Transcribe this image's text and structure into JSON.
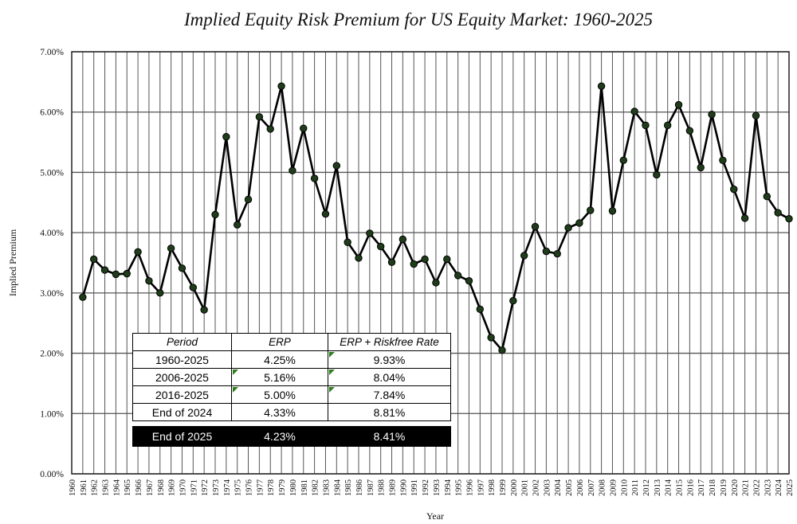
{
  "chart_data": {
    "type": "line",
    "title": "Implied Equity Risk Premium for US Equity Market: 1960-2025",
    "xlabel": "Year",
    "ylabel": "Implied Premium",
    "ylim": [
      0,
      0.07
    ],
    "yticks": [
      "0.00%",
      "1.00%",
      "2.00%",
      "3.00%",
      "4.00%",
      "5.00%",
      "6.00%",
      "7.00%"
    ],
    "grid": true,
    "series": [
      {
        "name": "Implied Premium",
        "x": [
          1961,
          1962,
          1963,
          1964,
          1965,
          1966,
          1967,
          1968,
          1969,
          1970,
          1971,
          1972,
          1973,
          1974,
          1975,
          1976,
          1977,
          1978,
          1979,
          1980,
          1981,
          1982,
          1983,
          1984,
          1985,
          1986,
          1987,
          1988,
          1989,
          1990,
          1991,
          1992,
          1993,
          1994,
          1995,
          1996,
          1997,
          1998,
          1999,
          2000,
          2001,
          2002,
          2003,
          2004,
          2005,
          2006,
          2007,
          2008,
          2009,
          2010,
          2011,
          2012,
          2013,
          2014,
          2015,
          2016,
          2017,
          2018,
          2019,
          2020,
          2021,
          2022,
          2023,
          2024,
          2025
        ],
        "values": [
          0.0293,
          0.0356,
          0.0338,
          0.0331,
          0.0332,
          0.0368,
          0.032,
          0.03,
          0.0374,
          0.0341,
          0.0309,
          0.0272,
          0.043,
          0.0559,
          0.0413,
          0.0455,
          0.0592,
          0.0572,
          0.0643,
          0.0503,
          0.0573,
          0.049,
          0.0431,
          0.0511,
          0.0384,
          0.0358,
          0.0399,
          0.0377,
          0.0351,
          0.0389,
          0.0348,
          0.0356,
          0.0317,
          0.0356,
          0.0329,
          0.032,
          0.0273,
          0.0226,
          0.0205,
          0.0287,
          0.0362,
          0.041,
          0.0369,
          0.0365,
          0.0408,
          0.0416,
          0.0437,
          0.0643,
          0.0436,
          0.052,
          0.0601,
          0.0578,
          0.0496,
          0.0578,
          0.0612,
          0.0569,
          0.0508,
          0.0596,
          0.052,
          0.0472,
          0.0424,
          0.0594,
          0.046,
          0.0433,
          0.0423
        ]
      }
    ],
    "categories": [
      "1960",
      "1961",
      "1962",
      "1963",
      "1964",
      "1965",
      "1966",
      "1967",
      "1968",
      "1969",
      "1970",
      "1971",
      "1972",
      "1973",
      "1974",
      "1975",
      "1976",
      "1977",
      "1978",
      "1979",
      "1980",
      "1981",
      "1982",
      "1983",
      "1984",
      "1985",
      "1986",
      "1987",
      "1988",
      "1989",
      "1990",
      "1991",
      "1992",
      "1993",
      "1994",
      "1995",
      "1996",
      "1997",
      "1998",
      "1999",
      "2000",
      "2001",
      "2002",
      "2003",
      "2004",
      "2005",
      "2006",
      "2007",
      "2008",
      "2009",
      "2010",
      "2011",
      "2012",
      "2013",
      "2014",
      "2015",
      "2016",
      "2017",
      "2018",
      "2019",
      "2020",
      "2021",
      "2022",
      "2023",
      "2024",
      "2025"
    ]
  },
  "table": {
    "headers": [
      "Period",
      "ERP",
      "ERP + Riskfree Rate"
    ],
    "rows": [
      {
        "period": "1960-2025",
        "erp": "4.25%",
        "erp_rf": "9.93%"
      },
      {
        "period": "2006-2025",
        "erp": "5.16%",
        "erp_rf": "8.04%"
      },
      {
        "period": "2016-2025",
        "erp": "5.00%",
        "erp_rf": "7.84%"
      },
      {
        "period": "End of 2024",
        "erp": "4.33%",
        "erp_rf": "8.81%"
      }
    ],
    "highlight": {
      "period": "End of 2025",
      "erp": "4.23%",
      "erp_rf": "8.41%"
    },
    "mark_color": "#2e7d1e"
  },
  "colors": {
    "line": "#000000",
    "marker": "#1f3d1a",
    "grid": "#555555"
  }
}
